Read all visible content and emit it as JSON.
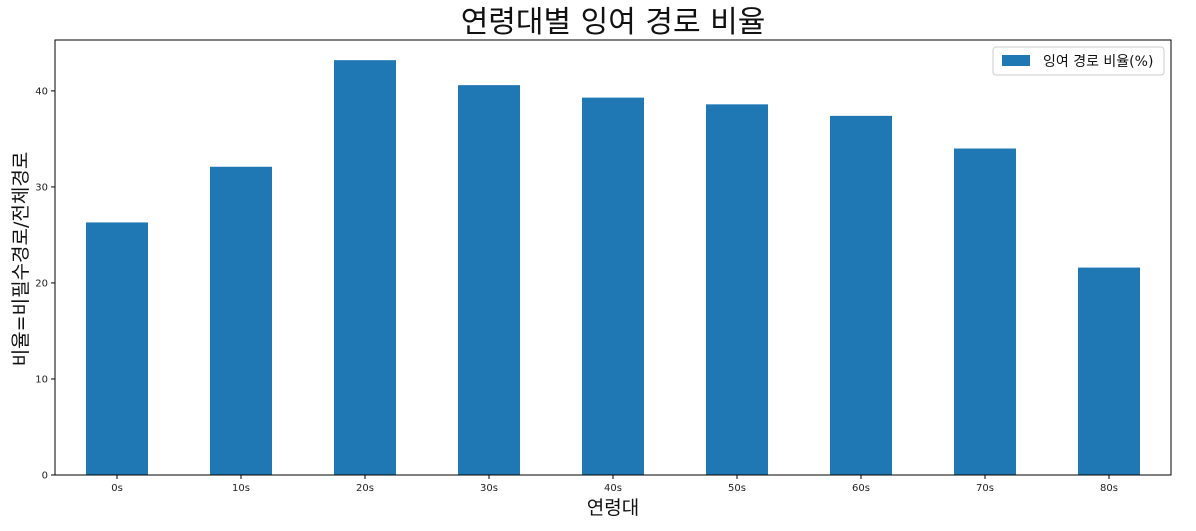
{
  "chart_data": {
    "type": "bar",
    "title": "연령대별 잉여 경로 비율",
    "xlabel": "연령대",
    "ylabel": "비율=비필수경로/전체경로",
    "categories": [
      "0s",
      "10s",
      "20s",
      "30s",
      "40s",
      "50s",
      "60s",
      "70s",
      "80s"
    ],
    "series": [
      {
        "name": "잉여 경로 비율(%)",
        "color": "#1f77b4",
        "values": [
          26.3,
          32.1,
          43.2,
          40.6,
          39.3,
          38.6,
          37.4,
          34.0,
          21.6
        ]
      }
    ],
    "ylim": [
      0,
      45.3
    ],
    "yticks": [
      0,
      10,
      20,
      30,
      40
    ],
    "grid": false,
    "legend_position": "top-right"
  }
}
